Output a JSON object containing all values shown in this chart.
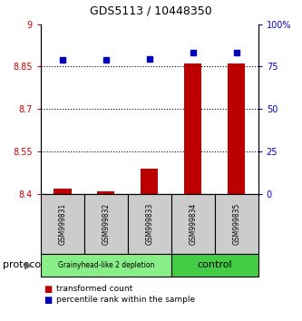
{
  "title": "GDS5113 / 10448350",
  "samples": [
    "GSM999831",
    "GSM999832",
    "GSM999833",
    "GSM999834",
    "GSM999835"
  ],
  "red_values": [
    8.42,
    8.41,
    8.49,
    8.86,
    8.86
  ],
  "blue_values": [
    79,
    79,
    79.5,
    83,
    83
  ],
  "ylim_left": [
    8.4,
    9.0
  ],
  "ylim_right": [
    0,
    100
  ],
  "yticks_left": [
    8.4,
    8.55,
    8.7,
    8.85,
    9.0
  ],
  "ytick_labels_left": [
    "8.4",
    "8.55",
    "8.7",
    "8.85",
    "9"
  ],
  "yticks_right": [
    0,
    25,
    50,
    75,
    100
  ],
  "ytick_labels_right": [
    "0",
    "25",
    "50",
    "75",
    "100%"
  ],
  "groups": [
    {
      "label": "Grainyhead-like 2 depletion",
      "color": "#88ee88",
      "n_samples": 3
    },
    {
      "label": "control",
      "color": "#44cc44",
      "n_samples": 2
    }
  ],
  "protocol_label": "protocol",
  "red_color": "#bb0000",
  "blue_color": "#0000bb",
  "bar_width": 0.4,
  "legend_red": "transformed count",
  "legend_blue": "percentile rank within the sample",
  "background_color": "#ffffff",
  "tick_label_color_left": "#cc0000",
  "tick_label_color_right": "#0000cc"
}
